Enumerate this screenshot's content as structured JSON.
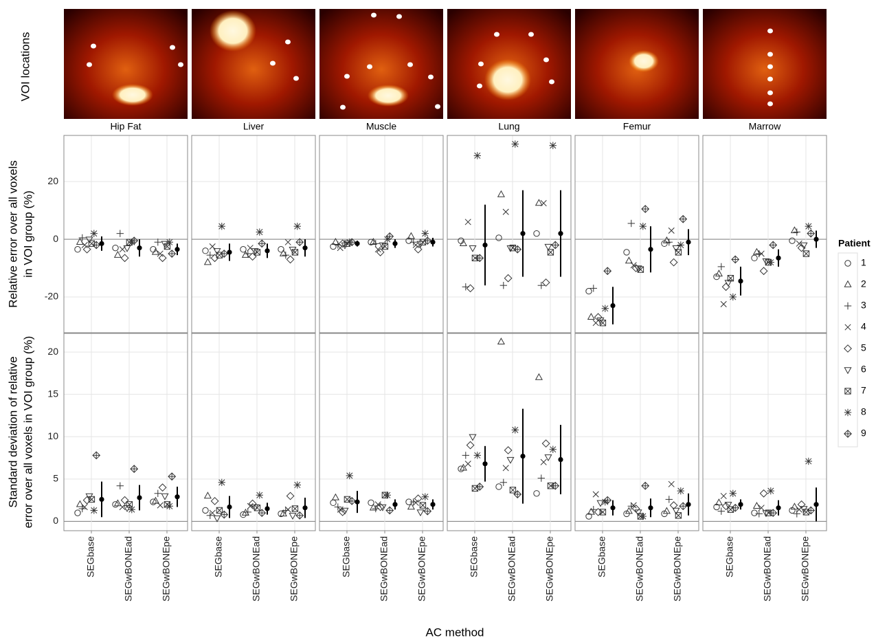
{
  "image_row_label": "VOI locations",
  "chart_data": {
    "type": "scatter",
    "x_label": "AC method",
    "methods": [
      "SEGbase",
      "SEGwBONEad",
      "SEGwBONEpe"
    ],
    "panels": [
      "Hip Fat",
      "Liver",
      "Muscle",
      "Lung",
      "Femur",
      "Marrow"
    ],
    "legend_title": "Patient",
    "patients": [
      "1",
      "2",
      "3",
      "4",
      "5",
      "6",
      "7",
      "8",
      "9"
    ],
    "grid": true,
    "rows": [
      {
        "y_label": [
          "Relative error over all voxels",
          "in VOI group (%)"
        ],
        "ylim": [
          -32.4,
          36
        ],
        "yticks": [
          -20,
          0,
          20
        ],
        "groups": [
          [
            {
              "values": [
                -3.5,
                -1,
                0.5,
                -2,
                -3.5,
                0,
                -1.5,
                2,
                -2
              ],
              "mean": -1.5,
              "err": 2.5
            },
            {
              "values": [
                -3,
                -5.5,
                2,
                -3.5,
                -6.5,
                -3,
                -1,
                -1,
                -0.5
              ],
              "mean": -3,
              "err": 3
            },
            {
              "values": [
                -3.5,
                -4.5,
                -1,
                -5,
                -6.5,
                -1.5,
                -2.5,
                -1,
                -5
              ],
              "mean": -3.5,
              "err": 2
            }
          ],
          [
            {
              "values": [
                -4,
                -8,
                -5.5,
                -2.5,
                -6.5,
                -4,
                -5.5,
                4.5,
                -5
              ],
              "mean": -4.5,
              "err": 3
            },
            {
              "values": [
                -3.5,
                -5.5,
                -5,
                -3,
                -6,
                -4,
                -4.5,
                2.5,
                -1.5
              ],
              "mean": -4,
              "err": 2.5
            },
            {
              "values": [
                -3.5,
                -5,
                -5.5,
                -1,
                -7,
                -3.5,
                -4.5,
                4.5,
                -1
              ],
              "mean": -3,
              "err": 3
            }
          ],
          [
            {
              "values": [
                -2.5,
                -1,
                -2,
                -3,
                -1.5,
                -2,
                -1.5,
                -1,
                -1
              ],
              "mean": -1.5,
              "err": 1
            },
            {
              "values": [
                -1,
                -1,
                -1.5,
                -3.5,
                -4.5,
                -2,
                -2.5,
                0,
                1
              ],
              "mean": -1.5,
              "err": 1.5
            },
            {
              "values": [
                -0.5,
                1,
                -1,
                -2,
                -3.5,
                -1.5,
                -1,
                2,
                -0.5
              ],
              "mean": -1,
              "err": 1.5
            }
          ],
          [
            {
              "values": [
                -0.5,
                -1.5,
                -16.5,
                6,
                -17,
                -3,
                -6.5,
                29,
                -6.5
              ],
              "mean": -2,
              "err": 14
            },
            {
              "values": [
                0.5,
                15.5,
                -16,
                9.5,
                -13.5,
                -3,
                -3,
                33,
                -3.5
              ],
              "mean": 2,
              "err": 15
            },
            {
              "values": [
                2,
                12.5,
                -16,
                12.5,
                -15,
                -2.5,
                -4.5,
                32.5,
                -2
              ],
              "mean": 2,
              "err": 15
            }
          ],
          [
            {
              "values": [
                -18,
                -27,
                -17,
                -29,
                -27,
                -28,
                -29,
                -24,
                -11
              ],
              "mean": -23,
              "err": 6.5
            },
            {
              "values": [
                -4.5,
                -7.5,
                5.5,
                -9,
                -10,
                -10,
                -10.5,
                4.5,
                10.5
              ],
              "mean": -3.5,
              "err": 8
            },
            {
              "values": [
                -1.5,
                -0.5,
                -1,
                3,
                -8,
                -3,
                -4.5,
                -2,
                7
              ],
              "mean": -1,
              "err": 4.5
            }
          ],
          [
            {
              "values": [
                -13,
                -12,
                -9.5,
                -22.5,
                -16.5,
                -15,
                -13.5,
                -20,
                -7
              ],
              "mean": -14.5,
              "err": 5
            },
            {
              "values": [
                -6.5,
                -4.5,
                -5,
                -5,
                -11,
                -7.5,
                -8,
                -8,
                -2
              ],
              "mean": -6.5,
              "err": 3
            },
            {
              "values": [
                -0.5,
                3,
                2.5,
                -1.5,
                -3,
                -2,
                -5,
                4.5,
                2
              ],
              "mean": 0,
              "err": 3
            }
          ]
        ]
      },
      {
        "y_label": [
          "Standard deviation of relative",
          "error over all voxels in VOI group (%)"
        ],
        "ylim": [
          -1.1,
          22.2
        ],
        "yticks": [
          0,
          5,
          10,
          15,
          20
        ],
        "groups": [
          [
            {
              "values": [
                1.0,
                2.0,
                1.5,
                1.7,
                2.5,
                3.0,
                2.6,
                1.3,
                7.8
              ],
              "mean": 2.6,
              "err": 2.1
            },
            {
              "values": [
                2.0,
                2.1,
                4.2,
                1.7,
                2.5,
                1.6,
                2.0,
                1.4,
                6.2
              ],
              "mean": 2.8,
              "err": 1.5
            },
            {
              "values": [
                2.3,
                2.4,
                3.3,
                1.9,
                4.0,
                3.0,
                2.0,
                1.8,
                5.3
              ],
              "mean": 2.9,
              "err": 1.2
            }
          ],
          [
            {
              "values": [
                1.3,
                3.0,
                0.7,
                1.0,
                2.4,
                0.4,
                1.3,
                4.6,
                0.8
              ],
              "mean": 1.7,
              "err": 1.3
            },
            {
              "values": [
                0.8,
                1.0,
                1.1,
                1.8,
                2.1,
                1.7,
                1.6,
                3.1,
                1.0
              ],
              "mean": 1.5,
              "err": 0.7
            },
            {
              "values": [
                0.9,
                0.9,
                1.3,
                1.4,
                3.0,
                0.7,
                1.5,
                4.3,
                0.7
              ],
              "mean": 1.6,
              "err": 1.2
            }
          ],
          [
            {
              "values": [
                2.2,
                2.8,
                1.7,
                1.4,
                1.1,
                1.3,
                2.6,
                5.4,
                2.4
              ],
              "mean": 2.3,
              "err": 1.3
            },
            {
              "values": [
                2.2,
                1.6,
                1.5,
                2.0,
                1.7,
                1.7,
                3.1,
                3.1,
                1.3
              ],
              "mean": 2.0,
              "err": 0.6
            },
            {
              "values": [
                2.3,
                1.7,
                2.3,
                2.2,
                2.7,
                1.1,
                1.9,
                2.9,
                1.2
              ],
              "mean": 2.0,
              "err": 0.6
            }
          ],
          [
            {
              "values": [
                6.2,
                6.3,
                7.8,
                6.8,
                9.0,
                10.0,
                3.9,
                7.8,
                4.1
              ],
              "mean": 6.8,
              "err": 2.1
            },
            {
              "values": [
                4.1,
                21.2,
                4.6,
                6.3,
                8.4,
                7.3,
                3.7,
                10.8,
                3.2
              ],
              "mean": 7.7,
              "err": 5.6
            },
            {
              "values": [
                3.3,
                17.0,
                5.1,
                7.0,
                9.2,
                7.6,
                4.2,
                8.5,
                4.2
              ],
              "mean": 7.3,
              "err": 4.1
            }
          ],
          [
            {
              "values": [
                0.6,
                1.1,
                1.4,
                3.2,
                1.1,
                2.2,
                1.1,
                2.3,
                2.5
              ],
              "mean": 1.6,
              "err": 0.9
            },
            {
              "values": [
                0.9,
                1.2,
                1.8,
                1.9,
                1.5,
                1.1,
                0.6,
                0.6,
                4.2
              ],
              "mean": 1.6,
              "err": 1.1
            },
            {
              "values": [
                0.9,
                1.2,
                2.6,
                4.4,
                1.9,
                1.3,
                0.7,
                3.6,
                1.8
              ],
              "mean": 2.0,
              "err": 1.3
            }
          ],
          [
            {
              "values": [
                1.7,
                2.2,
                1.2,
                3.0,
                1.8,
                2.0,
                1.4,
                3.3,
                1.6
              ],
              "mean": 2.0,
              "err": 0.6
            },
            {
              "values": [
                1.0,
                1.8,
                0.9,
                1.6,
                3.3,
                1.0,
                1.0,
                3.6,
                1.0
              ],
              "mean": 1.6,
              "err": 0.9
            },
            {
              "values": [
                1.3,
                1.7,
                0.9,
                1.4,
                2.0,
                1.5,
                1.1,
                7.1,
                1.3
              ],
              "mean": 2.0,
              "err": 2.0
            }
          ]
        ]
      }
    ]
  }
}
